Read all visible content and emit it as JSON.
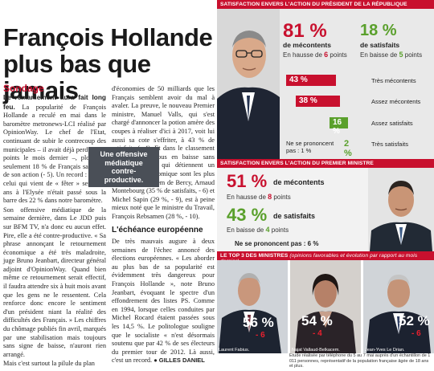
{
  "article": {
    "headline": "François Hollande plus bas que jamais",
    "kicker": "Sondage",
    "lead": "Le remaniement aura fait long feu.",
    "col1": [
      "La popularité de François Hollande a reculé en mai dans le baromètre metronews-LCI réalisé par OpinionWay. Le chef de l'Etat, continuant de subir le contrecoup des municipales – il avait déjà perdu deux points le mois dernier –, plonge à seulement 18 % de Français satisfaits de son action (- 5). Un record : jamais celui qui vient de « fêter » ses deux ans à l'Elysée n'était passé sous la barre des 22 % dans notre baromètre.",
      "Son offensive médiatique de la semaine dernière, dans Le JDD puis sur BFM TV, n'a donc eu aucun effet. Pire, elle a été contre-productive. « Sa phrase annonçant le retournement économique a été très maladroite, juge Bruno Jeanbart, directeur général adjoint d'OpinionWay. Quand bien même ce retournement serait effectif, il faudra attendre six à huit mois avant que les gens ne le ressentent. Cela renforce donc encore le sentiment d'un président niant la réalité des difficultés des Français. » Les chiffres du chômage publiés fin avril, marqués par une stabilisation mais toujours sans signe de baisse, n'auront rien arrangé.",
      "Mais c'est surtout la pilule du plan"
    ],
    "col2": [
      "d'économies de 50 milliards que les Français semblent avoir du mal à avaler. La preuve, le nouveau Premier ministre, Manuel Valls, qui s'est chargé d'annoncer la potion amère des coupes à réaliser d'ici à 2017, voit lui aussi sa cote s'effriter, à 43 % de satisfaits (- 4). Et dans le classement des ministres, tous en baisse sans exception, ceux qui détiennent un portefeuille économique sont les plus touchés : le tandem de Bercy, Arnaud Montebourg (35 % de satisfaits, - 6) et Michel Sapin (29 %, - 9), est à peine mieux noté que le ministre du Travail, François Rebsamen (28 %, - 10)."
    ],
    "subhead": "L'échéance européenne",
    "col2b": "De très mauvais augure à deux semaines de l'échec annoncé des élections européennes. « Les aborder au plus bas de sa popularité est évidemment très dangereux pour François Hollande », note Bruno Jeanbart, évoquant le spectre d'un effondrement des listes PS. Comme en 1994, lorsque celles conduites par Michel Rocard étaient passées sous les 14,5 %. Le politologue souligne que le socialiste « n'est désormais soutenu que par 42 % de ses électeurs du premier tour de 2012. Là aussi, c'est un record.",
    "signature": "● GILLES DANIEL",
    "pullquote": "Une offensive médiatique contre-productive."
  },
  "president": {
    "band": "SATISFACTION ENVERS L'ACTION DU PRÉSIDENT DE LA RÉPUBLIQUE",
    "mecontents_value": "81 %",
    "mecontents_label": "de mécontents",
    "mecontents_trend": "En hausse de",
    "mecontents_trend_value": "6",
    "mecontents_trend_unit": "points",
    "satisfaits_value": "18 %",
    "satisfaits_label": "de satisfaits",
    "satisfaits_trend": "En baisse de",
    "satisfaits_trend_value": "5",
    "satisfaits_trend_unit": "points",
    "bars": [
      {
        "value": "43 %",
        "label": "Très mécontents",
        "color": "#c8102e"
      },
      {
        "value": "38 %",
        "label": "Assez mécontents",
        "color": "#c8102e"
      },
      {
        "value": "16 %",
        "label": "Assez satisfaits",
        "color": "#5aa02c"
      },
      {
        "value": "2 %",
        "label": "Très satisfaits",
        "color": "#5aa02c"
      }
    ],
    "nsp_label": "Ne se prononcent pas :",
    "nsp_value": "1 %"
  },
  "pm": {
    "band": "SATISFACTION ENVERS L'ACTION DU PREMIER MINISTRE",
    "mecontents_value": "51 %",
    "mecontents_label": "de mécontents",
    "mecontents_trend": "En hausse de",
    "mecontents_trend_value": "8",
    "mecontents_trend_unit": "points",
    "satisfaits_value": "43 %",
    "satisfaits_label": "de satisfaits",
    "satisfaits_trend": "En baisse de",
    "satisfaits_trend_value": "4",
    "satisfaits_trend_unit": "points",
    "nsp": "Ne se prononcent pas : 6 %"
  },
  "top3": {
    "band": "LE TOP 3 DES MINISTRES",
    "band_note": "(opinions favorables et évolution par rapport au mois dernier)",
    "ministers": [
      {
        "name": "Laurent Fabius.",
        "pct": "56 %",
        "delta": "- 6"
      },
      {
        "name": "Najat Vallaud-Belkacem.",
        "pct": "54 %",
        "delta": "- 4"
      },
      {
        "name": "Jean-Yves Le Drian.",
        "pct": "52 %",
        "delta": "- 6"
      }
    ],
    "note": "Etude réalisée par téléphone du 5 au 7 mai auprès d'un échantillon de 1 011 personnes, représentatif de la population française âgée de 18 ans et plus."
  },
  "colors": {
    "accent_red": "#c8102e",
    "accent_green": "#5aa02c",
    "quote_bg": "#4a4f57"
  }
}
